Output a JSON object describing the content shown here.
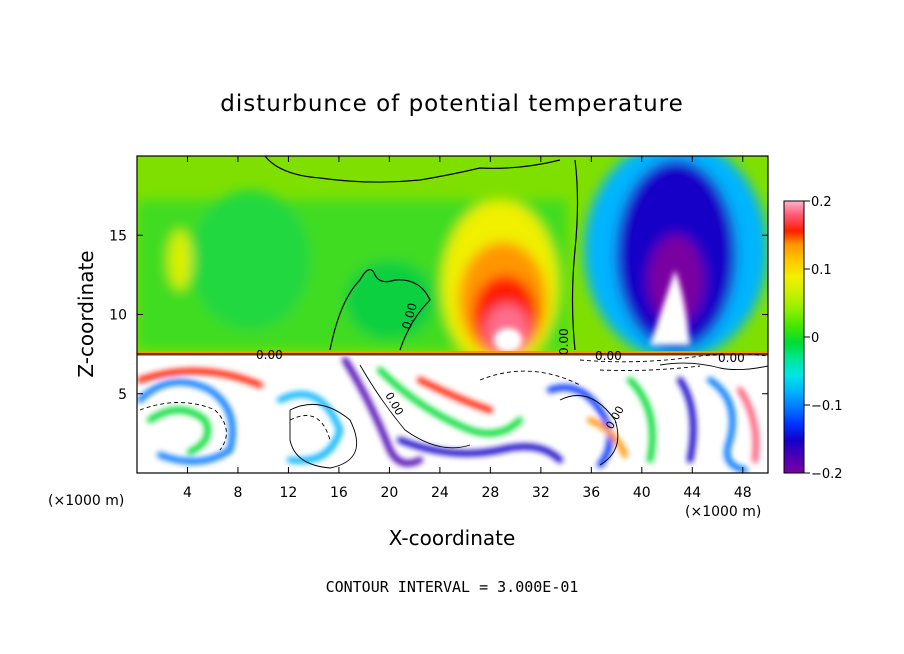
{
  "chart_data": {
    "type": "heatmap",
    "title": "disturbunce of potential temperature",
    "xlabel": "X-coordinate",
    "ylabel": "Z-coordinate",
    "x_unit": "(×1000 m)",
    "y_unit": "(×1000 m)",
    "xlim": [
      0,
      50
    ],
    "ylim": [
      0,
      20
    ],
    "x_ticks": [
      4,
      8,
      12,
      16,
      20,
      24,
      28,
      32,
      36,
      40,
      44,
      48
    ],
    "y_ticks": [
      5,
      10,
      15
    ],
    "colorbar": {
      "range": [
        -0.2,
        0.2
      ],
      "tick_values": [
        0.2,
        0.1,
        0,
        -0.1,
        -0.2
      ],
      "tick_labels": [
        "0.2",
        "0.1",
        "0",
        "−0.1",
        "−0.2"
      ],
      "colors": [
        "#7a00a0",
        "#4b00b4",
        "#1400c8",
        "#0032ff",
        "#0078ff",
        "#00b4ff",
        "#00e6e6",
        "#00e696",
        "#00dc32",
        "#46e600",
        "#8cf000",
        "#c8f000",
        "#f0f000",
        "#ffc800",
        "#ff9600",
        "#ff5a00",
        "#ff1e00",
        "#ff5a78",
        "#ffb4c8"
      ]
    },
    "contour_interval": "CONTOUR INTERVAL = 3.000E-01",
    "contour_labels": [
      "0.00",
      "0.00",
      "0.00",
      "0.00",
      "0.00",
      "0.00",
      "0.00"
    ],
    "features": [
      {
        "name": "warm-plume",
        "x": 30,
        "z": 10.5,
        "value": 0.2
      },
      {
        "name": "cold-plume",
        "x": 42.5,
        "z": 13,
        "value": -0.2
      },
      {
        "name": "inversion-layer",
        "z": 7.5
      }
    ]
  }
}
